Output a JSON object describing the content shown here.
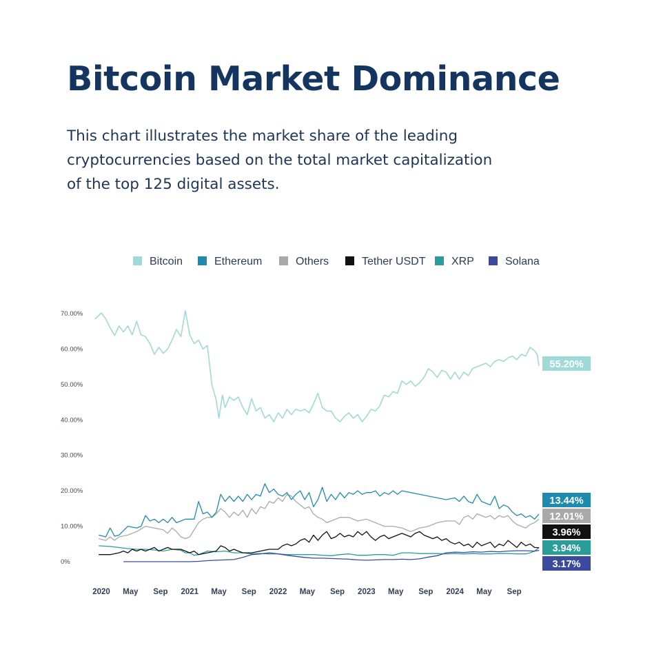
{
  "header": {
    "title": "Bitcoin Market Dominance",
    "subtitle_lines": [
      "This chart illustrates the market share of the leading",
      "cryptocurrencies based on the total market capitalization",
      "of the top 125 digital assets."
    ]
  },
  "chart_data": {
    "type": "line",
    "title": "Bitcoin Market Dominance",
    "xlabel": "",
    "ylabel": "",
    "ylim": [
      0,
      72
    ],
    "y_ticks": [
      "70.00%",
      "60.00%",
      "50.00%",
      "40.00%",
      "30.00%",
      "20.00%",
      "10.00%",
      "0%"
    ],
    "y_tick_values": [
      70,
      60,
      50,
      40,
      30,
      20,
      10,
      0
    ],
    "x_range": [
      2020.0,
      2024.95
    ],
    "x_ticks": [
      {
        "label": "2020",
        "t": 2020.0
      },
      {
        "label": "May",
        "t": 2020.33
      },
      {
        "label": "Sep",
        "t": 2020.67
      },
      {
        "label": "2021",
        "t": 2021.0
      },
      {
        "label": "May",
        "t": 2021.33
      },
      {
        "label": "Sep",
        "t": 2021.67
      },
      {
        "label": "2022",
        "t": 2022.0
      },
      {
        "label": "May",
        "t": 2022.33
      },
      {
        "label": "Sep",
        "t": 2022.67
      },
      {
        "label": "2023",
        "t": 2023.0
      },
      {
        "label": "May",
        "t": 2023.33
      },
      {
        "label": "Sep",
        "t": 2023.67
      },
      {
        "label": "2024",
        "t": 2024.0
      },
      {
        "label": "May",
        "t": 2024.33
      },
      {
        "label": "Sep",
        "t": 2024.67
      }
    ],
    "legend_position": "top",
    "grid": false,
    "series": [
      {
        "name": "Bitcoin",
        "color": "#9fdad8",
        "end_label": "55.20%",
        "x": [
          2019.93,
          2020.0,
          2020.05,
          2020.1,
          2020.15,
          2020.2,
          2020.25,
          2020.3,
          2020.35,
          2020.4,
          2020.45,
          2020.5,
          2020.55,
          2020.6,
          2020.65,
          2020.7,
          2020.75,
          2020.8,
          2020.85,
          2020.9,
          2020.95,
          2021.0,
          2021.05,
          2021.1,
          2021.15,
          2021.2,
          2021.25,
          2021.3,
          2021.33,
          2021.37,
          2021.4,
          2021.45,
          2021.5,
          2021.55,
          2021.6,
          2021.65,
          2021.7,
          2021.75,
          2021.8,
          2021.85,
          2021.9,
          2021.95,
          2022.0,
          2022.05,
          2022.1,
          2022.15,
          2022.2,
          2022.25,
          2022.3,
          2022.35,
          2022.4,
          2022.45,
          2022.5,
          2022.55,
          2022.6,
          2022.65,
          2022.7,
          2022.75,
          2022.8,
          2022.85,
          2022.9,
          2022.95,
          2023.0,
          2023.05,
          2023.1,
          2023.15,
          2023.2,
          2023.25,
          2023.3,
          2023.35,
          2023.4,
          2023.45,
          2023.5,
          2023.55,
          2023.6,
          2023.65,
          2023.7,
          2023.75,
          2023.8,
          2023.85,
          2023.9,
          2023.95,
          2024.0,
          2024.05,
          2024.1,
          2024.15,
          2024.2,
          2024.25,
          2024.3,
          2024.35,
          2024.4,
          2024.45,
          2024.5,
          2024.55,
          2024.6,
          2024.65,
          2024.7,
          2024.75,
          2024.8,
          2024.85,
          2024.9,
          2024.93,
          2024.95
        ],
        "y": [
          68.5,
          70.2,
          68.5,
          66,
          63.8,
          66.5,
          64.8,
          66.5,
          64,
          67.8,
          64,
          63.5,
          61.5,
          58.5,
          60.5,
          58.8,
          60,
          62.5,
          65.5,
          63.5,
          70.8,
          64,
          61.5,
          62.5,
          60,
          61,
          50,
          45.5,
          40.5,
          47,
          43.5,
          46.5,
          45.5,
          46.5,
          43.5,
          41.5,
          46,
          42.5,
          43.5,
          40.5,
          41.5,
          39.5,
          42,
          40.5,
          43,
          41.5,
          43,
          42.5,
          43,
          42,
          44.5,
          47.5,
          43.5,
          42.5,
          42.5,
          40.5,
          39.5,
          41,
          42,
          40.5,
          41.5,
          39.5,
          41,
          43,
          42.5,
          44,
          47,
          46.5,
          48,
          47.5,
          51,
          50,
          51,
          49.5,
          50.5,
          52,
          54.5,
          53.5,
          52,
          54,
          53.5,
          51.5,
          53.5,
          51.5,
          53.5,
          52.5,
          54.5,
          55,
          55.5,
          56,
          55,
          56.5,
          57,
          56.5,
          57.5,
          58,
          57,
          58.5,
          58,
          60.5,
          59.5,
          58.5,
          55.2
        ]
      },
      {
        "name": "Ethereum",
        "color": "#1f8ab0",
        "end_label": "13.44%",
        "x": [
          2019.97,
          2020.05,
          2020.1,
          2020.15,
          2020.2,
          2020.3,
          2020.4,
          2020.45,
          2020.5,
          2020.55,
          2020.6,
          2020.65,
          2020.7,
          2020.75,
          2020.8,
          2020.85,
          2020.9,
          2020.95,
          2021.0,
          2021.05,
          2021.1,
          2021.15,
          2021.2,
          2021.25,
          2021.3,
          2021.35,
          2021.4,
          2021.45,
          2021.5,
          2021.55,
          2021.6,
          2021.65,
          2021.7,
          2021.75,
          2021.8,
          2021.85,
          2021.9,
          2021.95,
          2022.0,
          2022.05,
          2022.1,
          2022.15,
          2022.2,
          2022.25,
          2022.3,
          2022.35,
          2022.4,
          2022.45,
          2022.5,
          2022.55,
          2022.6,
          2022.65,
          2022.7,
          2022.75,
          2022.8,
          2022.85,
          2022.9,
          2022.95,
          2023.0,
          2023.05,
          2023.1,
          2023.15,
          2023.2,
          2023.25,
          2023.3,
          2023.35,
          2023.4,
          2023.5,
          2023.6,
          2023.7,
          2023.8,
          2023.9,
          2024.0,
          2024.05,
          2024.1,
          2024.15,
          2024.2,
          2024.25,
          2024.3,
          2024.35,
          2024.4,
          2024.45,
          2024.5,
          2024.55,
          2024.6,
          2024.65,
          2024.7,
          2024.75,
          2024.8,
          2024.85,
          2024.9,
          2024.95
        ],
        "y": [
          7.5,
          7,
          9.5,
          7.2,
          7.5,
          10,
          9.5,
          10,
          13,
          11.5,
          12,
          11,
          12,
          11,
          12.5,
          11,
          11.5,
          12,
          12,
          12,
          17,
          13.5,
          14,
          12.5,
          14,
          19,
          17,
          18.5,
          17,
          18.5,
          17,
          19,
          17.5,
          19,
          18.5,
          22,
          19.5,
          20.5,
          19,
          18.5,
          19.5,
          17.5,
          19,
          20,
          17.5,
          19.5,
          15.5,
          17.5,
          21,
          17,
          19,
          17.5,
          19.5,
          18,
          19.5,
          19,
          20,
          19,
          19.5,
          19.5,
          20,
          18.5,
          19.5,
          19,
          20,
          19,
          20,
          19.5,
          19,
          18.5,
          18,
          17.5,
          18,
          17,
          18.5,
          17,
          16.5,
          19,
          17,
          16.5,
          16,
          18.5,
          15,
          16,
          15.5,
          14,
          13,
          13.5,
          12.5,
          13,
          12,
          13.44
        ]
      },
      {
        "name": "Others",
        "color": "#a9a9a9",
        "end_label": "12.01%",
        "x": [
          2019.97,
          2020.05,
          2020.1,
          2020.15,
          2020.2,
          2020.3,
          2020.4,
          2020.5,
          2020.6,
          2020.7,
          2020.75,
          2020.8,
          2020.85,
          2020.9,
          2020.95,
          2021.0,
          2021.05,
          2021.1,
          2021.15,
          2021.2,
          2021.25,
          2021.3,
          2021.35,
          2021.4,
          2021.45,
          2021.5,
          2021.55,
          2021.6,
          2021.65,
          2021.7,
          2021.75,
          2021.8,
          2021.85,
          2021.9,
          2021.95,
          2022.0,
          2022.05,
          2022.1,
          2022.15,
          2022.2,
          2022.25,
          2022.3,
          2022.35,
          2022.4,
          2022.45,
          2022.5,
          2022.55,
          2022.6,
          2022.7,
          2022.8,
          2022.9,
          2023.0,
          2023.1,
          2023.2,
          2023.3,
          2023.4,
          2023.5,
          2023.6,
          2023.7,
          2023.8,
          2023.9,
          2024.0,
          2024.05,
          2024.1,
          2024.15,
          2024.2,
          2024.25,
          2024.3,
          2024.35,
          2024.4,
          2024.45,
          2024.5,
          2024.55,
          2024.6,
          2024.65,
          2024.7,
          2024.75,
          2024.8,
          2024.85,
          2024.9,
          2024.95
        ],
        "y": [
          6.5,
          6,
          7,
          6,
          7,
          7.5,
          8.5,
          10,
          9.5,
          9,
          8,
          9.5,
          8.5,
          7,
          6.5,
          7,
          9,
          11,
          12,
          12.5,
          12.5,
          13.5,
          15,
          14,
          12.5,
          14,
          13,
          14.5,
          12.5,
          15,
          13.5,
          15.5,
          15,
          17,
          16.5,
          18,
          17,
          19,
          18.5,
          17,
          16,
          15,
          15.5,
          13.5,
          12.5,
          12,
          11,
          11.5,
          12.5,
          12.5,
          11.5,
          12,
          11,
          10,
          10,
          9.5,
          8.5,
          9.5,
          10,
          11,
          11.5,
          11.5,
          10.5,
          12.5,
          13,
          12,
          13.5,
          13,
          12.5,
          13,
          12,
          13,
          12.5,
          13,
          11.5,
          10.5,
          10,
          9.5,
          10.5,
          11,
          12.01
        ]
      },
      {
        "name": "Tether USDT",
        "color": "#111111",
        "end_label": "3.96%",
        "x": [
          2019.97,
          2020.1,
          2020.2,
          2020.25,
          2020.3,
          2020.35,
          2020.4,
          2020.45,
          2020.5,
          2020.55,
          2020.6,
          2020.65,
          2020.7,
          2020.75,
          2020.8,
          2020.85,
          2020.9,
          2021.0,
          2021.05,
          2021.1,
          2021.2,
          2021.3,
          2021.35,
          2021.4,
          2021.45,
          2021.5,
          2021.55,
          2021.6,
          2021.7,
          2021.8,
          2021.9,
          2022.0,
          2022.05,
          2022.1,
          2022.15,
          2022.2,
          2022.25,
          2022.3,
          2022.35,
          2022.4,
          2022.45,
          2022.5,
          2022.55,
          2022.6,
          2022.65,
          2022.7,
          2022.75,
          2022.8,
          2022.85,
          2022.9,
          2022.95,
          2023.0,
          2023.05,
          2023.1,
          2023.15,
          2023.2,
          2023.25,
          2023.3,
          2023.35,
          2023.4,
          2023.45,
          2023.5,
          2023.55,
          2023.6,
          2023.65,
          2023.7,
          2023.75,
          2023.8,
          2023.85,
          2023.9,
          2023.95,
          2024.0,
          2024.05,
          2024.1,
          2024.15,
          2024.2,
          2024.25,
          2024.3,
          2024.35,
          2024.4,
          2024.45,
          2024.5,
          2024.55,
          2024.6,
          2024.65,
          2024.7,
          2024.75,
          2024.8,
          2024.85,
          2024.9,
          2024.95
        ],
        "y": [
          2,
          2,
          2.5,
          3,
          2.5,
          3.5,
          3,
          3.5,
          3,
          3.5,
          4,
          3,
          3.5,
          4,
          3.5,
          3.5,
          3.5,
          2.5,
          3,
          2,
          2.5,
          3,
          4.5,
          4,
          3,
          3.5,
          3,
          2.5,
          2.5,
          3,
          3.5,
          3.5,
          4.5,
          5,
          4.5,
          5,
          6,
          6.5,
          5.5,
          7.5,
          6,
          7.5,
          8.5,
          6.5,
          7,
          8,
          7,
          7.5,
          7,
          8.5,
          7.5,
          8.5,
          7,
          6,
          7,
          7.5,
          6.5,
          7,
          7.5,
          8,
          7.5,
          7,
          8,
          8.5,
          7.5,
          7,
          6.5,
          7,
          6,
          6.5,
          5.5,
          5,
          5.5,
          4.5,
          5,
          4,
          5.5,
          4.5,
          5,
          5.5,
          4,
          5,
          4.5,
          6,
          5,
          4,
          5.5,
          4.5,
          5,
          4,
          3.96
        ]
      },
      {
        "name": "XRP",
        "color": "#2a9d9a",
        "end_label": "3.94%",
        "x": [
          2019.97,
          2020.1,
          2020.2,
          2020.3,
          2020.4,
          2020.5,
          2020.6,
          2020.7,
          2020.8,
          2020.9,
          2020.95,
          2021.0,
          2021.05,
          2021.1,
          2021.2,
          2021.3,
          2021.4,
          2021.5,
          2021.6,
          2021.7,
          2021.8,
          2021.9,
          2022.0,
          2022.1,
          2022.2,
          2022.3,
          2022.4,
          2022.5,
          2022.6,
          2022.7,
          2022.8,
          2022.9,
          2023.0,
          2023.1,
          2023.2,
          2023.3,
          2023.4,
          2023.5,
          2023.6,
          2023.7,
          2023.8,
          2023.9,
          2024.0,
          2024.1,
          2024.2,
          2024.3,
          2024.4,
          2024.5,
          2024.6,
          2024.7,
          2024.8,
          2024.85,
          2024.9,
          2024.95
        ],
        "y": [
          4.5,
          4.3,
          4,
          3.7,
          3.5,
          3.5,
          3.3,
          3,
          3.5,
          3.2,
          2.5,
          2.5,
          1.8,
          2,
          3,
          2.8,
          3,
          2.5,
          2.5,
          2.2,
          2.3,
          2.2,
          2.2,
          2,
          2,
          2,
          2,
          1.8,
          1.7,
          2,
          2.2,
          1.8,
          1.8,
          2,
          2,
          1.8,
          2.5,
          2.5,
          2.3,
          2.3,
          2.3,
          2.2,
          2.3,
          2.2,
          2.3,
          2.2,
          2.2,
          2.3,
          2.3,
          2.2,
          2.2,
          2.5,
          3,
          3.94
        ]
      },
      {
        "name": "Solana",
        "color": "#3b4a9c",
        "end_label": "3.17%",
        "x": [
          2020.25,
          2020.5,
          2020.7,
          2020.9,
          2021.0,
          2021.1,
          2021.2,
          2021.3,
          2021.4,
          2021.5,
          2021.6,
          2021.7,
          2021.8,
          2021.9,
          2022.0,
          2022.1,
          2022.2,
          2022.3,
          2022.4,
          2022.5,
          2022.6,
          2022.7,
          2022.8,
          2022.9,
          2023.0,
          2023.1,
          2023.2,
          2023.3,
          2023.4,
          2023.5,
          2023.6,
          2023.7,
          2023.8,
          2023.9,
          2024.0,
          2024.1,
          2024.2,
          2024.3,
          2024.4,
          2024.5,
          2024.6,
          2024.7,
          2024.8,
          2024.9,
          2024.95
        ],
        "y": [
          0,
          0,
          0,
          0,
          0,
          0.1,
          0.3,
          0.4,
          0.5,
          0.6,
          1.2,
          2,
          2.2,
          2.5,
          2.2,
          1.8,
          1.5,
          1.2,
          1,
          1,
          0.9,
          0.8,
          0.7,
          0.5,
          0.4,
          0.5,
          0.6,
          0.6,
          0.7,
          0.6,
          0.8,
          1.3,
          1.7,
          2.5,
          2.7,
          2.6,
          2.8,
          2.7,
          2.9,
          2.8,
          3,
          3.1,
          3.1,
          3,
          3.17
        ]
      }
    ]
  }
}
